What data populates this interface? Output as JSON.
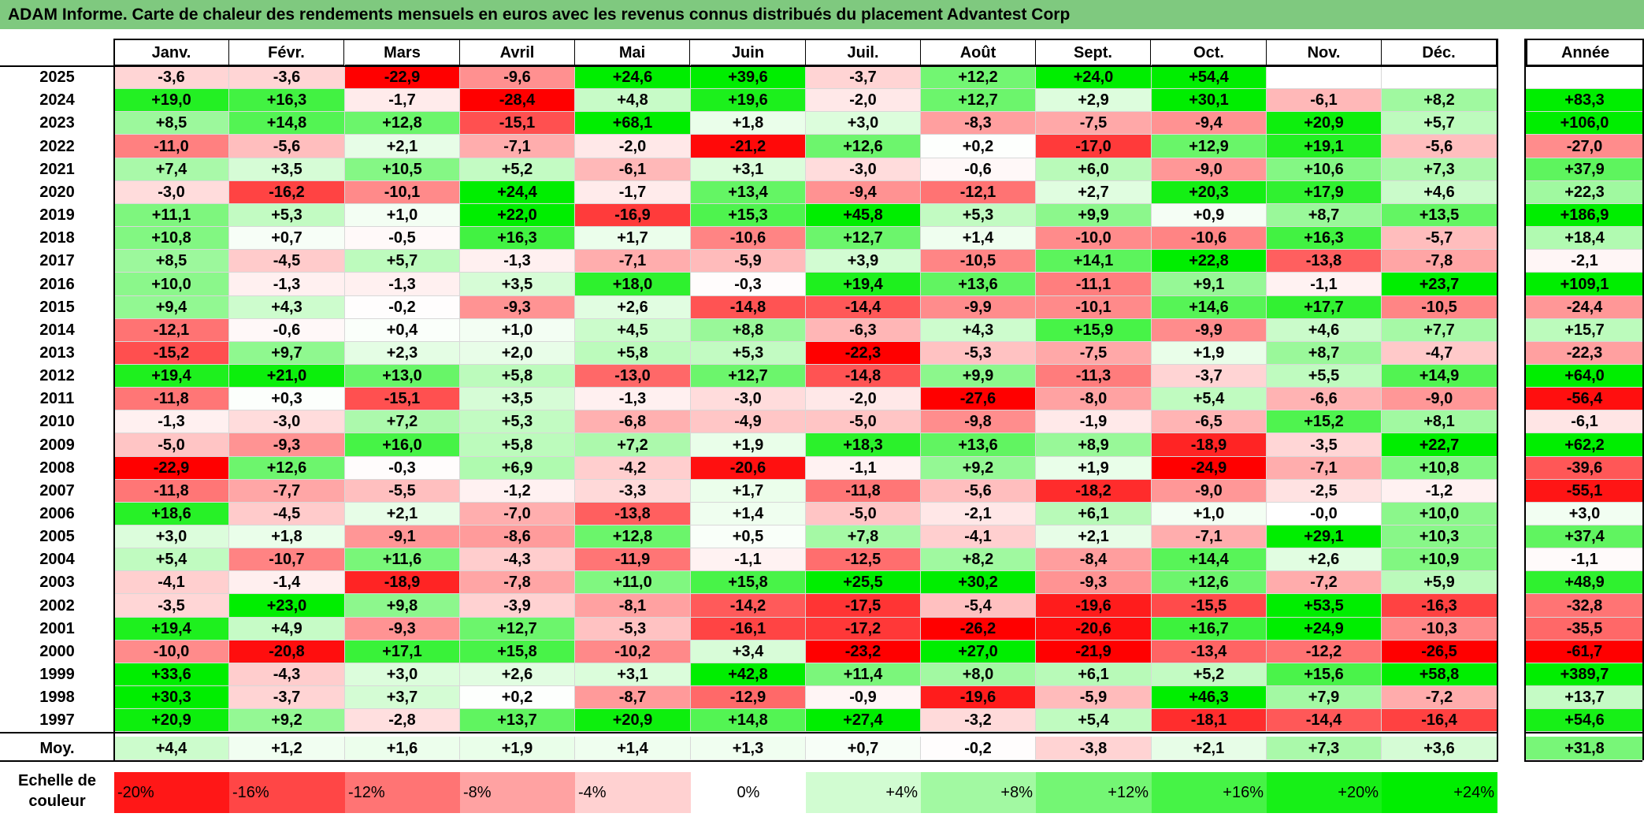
{
  "title": "ADAM Informe. Carte de chaleur des rendements mensuels en euros avec les revenus connus distribués du placement Advantest Corp",
  "chart_data": {
    "type": "heatmap",
    "title": "ADAM Informe. Carte de chaleur des rendements mensuels en euros avec les revenus connus distribués du placement Advantest Corp",
    "months": [
      "Janv.",
      "Févr.",
      "Mars",
      "Avril",
      "Mai",
      "Juin",
      "Juil.",
      "Août",
      "Sept.",
      "Oct.",
      "Nov.",
      "Déc."
    ],
    "year_header": "Année",
    "rows": [
      {
        "year": "2025",
        "values": [
          "-3,6",
          "-3,6",
          "-22,9",
          "-9,6",
          "+24,6",
          "+39,6",
          "-3,7",
          "+12,2",
          "+24,0",
          "+54,4",
          "",
          ""
        ],
        "annual": ""
      },
      {
        "year": "2024",
        "values": [
          "+19,0",
          "+16,3",
          "-1,7",
          "-28,4",
          "+4,8",
          "+19,6",
          "-2,0",
          "+12,7",
          "+2,9",
          "+30,1",
          "-6,1",
          "+8,2"
        ],
        "annual": "+83,3"
      },
      {
        "year": "2023",
        "values": [
          "+8,5",
          "+14,8",
          "+12,8",
          "-15,1",
          "+68,1",
          "+1,8",
          "+3,0",
          "-8,3",
          "-7,5",
          "-9,4",
          "+20,9",
          "+5,7"
        ],
        "annual": "+106,0"
      },
      {
        "year": "2022",
        "values": [
          "-11,0",
          "-5,6",
          "+2,1",
          "-7,1",
          "-2,0",
          "-21,2",
          "+12,6",
          "+0,2",
          "-17,0",
          "+12,9",
          "+19,1",
          "-5,6"
        ],
        "annual": "-27,0"
      },
      {
        "year": "2021",
        "values": [
          "+7,4",
          "+3,5",
          "+10,5",
          "+5,2",
          "-6,1",
          "+3,1",
          "-3,0",
          "-0,6",
          "+6,0",
          "-9,0",
          "+10,6",
          "+7,3"
        ],
        "annual": "+37,9"
      },
      {
        "year": "2020",
        "values": [
          "-3,0",
          "-16,2",
          "-10,1",
          "+24,4",
          "-1,7",
          "+13,4",
          "-9,4",
          "-12,1",
          "+2,7",
          "+20,3",
          "+17,9",
          "+4,6"
        ],
        "annual": "+22,3"
      },
      {
        "year": "2019",
        "values": [
          "+11,1",
          "+5,3",
          "+1,0",
          "+22,0",
          "-16,9",
          "+15,3",
          "+45,8",
          "+5,3",
          "+9,9",
          "+0,9",
          "+8,7",
          "+13,5"
        ],
        "annual": "+186,9"
      },
      {
        "year": "2018",
        "values": [
          "+10,8",
          "+0,7",
          "-0,5",
          "+16,3",
          "+1,7",
          "-10,6",
          "+12,7",
          "+1,4",
          "-10,0",
          "-10,6",
          "+16,3",
          "-5,7"
        ],
        "annual": "+18,4"
      },
      {
        "year": "2017",
        "values": [
          "+8,5",
          "-4,5",
          "+5,7",
          "-1,3",
          "-7,1",
          "-5,9",
          "+3,9",
          "-10,5",
          "+14,1",
          "+22,8",
          "-13,8",
          "-7,8"
        ],
        "annual": "-2,1"
      },
      {
        "year": "2016",
        "values": [
          "+10,0",
          "-1,3",
          "-1,3",
          "+3,5",
          "+18,0",
          "-0,3",
          "+19,4",
          "+13,6",
          "-11,1",
          "+9,1",
          "-1,1",
          "+23,7"
        ],
        "annual": "+109,1"
      },
      {
        "year": "2015",
        "values": [
          "+9,4",
          "+4,3",
          "-0,2",
          "-9,3",
          "+2,6",
          "-14,8",
          "-14,4",
          "-9,9",
          "-10,1",
          "+14,6",
          "+17,7",
          "-10,5"
        ],
        "annual": "-24,4"
      },
      {
        "year": "2014",
        "values": [
          "-12,1",
          "-0,6",
          "+0,4",
          "+1,0",
          "+4,5",
          "+8,8",
          "-6,3",
          "+4,3",
          "+15,9",
          "-9,9",
          "+4,6",
          "+7,7"
        ],
        "annual": "+15,7"
      },
      {
        "year": "2013",
        "values": [
          "-15,2",
          "+9,7",
          "+2,3",
          "+2,0",
          "+5,8",
          "+5,3",
          "-22,3",
          "-5,3",
          "-7,5",
          "+1,9",
          "+8,7",
          "-4,7"
        ],
        "annual": "-22,3"
      },
      {
        "year": "2012",
        "values": [
          "+19,4",
          "+21,0",
          "+13,0",
          "+5,8",
          "-13,0",
          "+12,7",
          "-14,8",
          "+9,9",
          "-11,3",
          "-3,7",
          "+5,5",
          "+14,9"
        ],
        "annual": "+64,0"
      },
      {
        "year": "2011",
        "values": [
          "-11,8",
          "+0,3",
          "-15,1",
          "+3,5",
          "-1,3",
          "-3,0",
          "-2,0",
          "-27,6",
          "-8,0",
          "+5,4",
          "-6,6",
          "-9,0"
        ],
        "annual": "-56,4"
      },
      {
        "year": "2010",
        "values": [
          "-1,3",
          "-3,0",
          "+7,2",
          "+5,3",
          "-6,8",
          "-4,9",
          "-5,0",
          "-9,8",
          "-1,9",
          "-6,5",
          "+15,2",
          "+8,1"
        ],
        "annual": "-6,1"
      },
      {
        "year": "2009",
        "values": [
          "-5,0",
          "-9,3",
          "+16,0",
          "+5,8",
          "+7,2",
          "+1,9",
          "+18,3",
          "+13,6",
          "+8,9",
          "-18,9",
          "-3,5",
          "+22,7"
        ],
        "annual": "+62,2"
      },
      {
        "year": "2008",
        "values": [
          "-22,9",
          "+12,6",
          "-0,3",
          "+6,9",
          "-4,2",
          "-20,6",
          "-1,1",
          "+9,2",
          "+1,9",
          "-24,9",
          "-7,1",
          "+10,8"
        ],
        "annual": "-39,6"
      },
      {
        "year": "2007",
        "values": [
          "-11,8",
          "-7,7",
          "-5,5",
          "-1,2",
          "-3,3",
          "+1,7",
          "-11,8",
          "-5,6",
          "-18,2",
          "-9,0",
          "-2,5",
          "-1,2"
        ],
        "annual": "-55,1"
      },
      {
        "year": "2006",
        "values": [
          "+18,6",
          "-4,5",
          "+2,1",
          "-7,0",
          "-13,8",
          "+1,4",
          "-5,0",
          "-2,1",
          "+6,1",
          "+1,0",
          "-0,0",
          "+10,0"
        ],
        "annual": "+3,0"
      },
      {
        "year": "2005",
        "values": [
          "+3,0",
          "+1,8",
          "-9,1",
          "-8,6",
          "+12,8",
          "+0,5",
          "+7,8",
          "-4,1",
          "+2,1",
          "-7,1",
          "+29,1",
          "+10,3"
        ],
        "annual": "+37,4"
      },
      {
        "year": "2004",
        "values": [
          "+5,4",
          "-10,7",
          "+11,6",
          "-4,3",
          "-11,9",
          "-1,1",
          "-12,5",
          "+8,2",
          "-8,4",
          "+14,4",
          "+2,6",
          "+10,9"
        ],
        "annual": "-1,1"
      },
      {
        "year": "2003",
        "values": [
          "-4,1",
          "-1,4",
          "-18,9",
          "-7,8",
          "+11,0",
          "+15,8",
          "+25,5",
          "+30,2",
          "-9,3",
          "+12,6",
          "-7,2",
          "+5,9"
        ],
        "annual": "+48,9"
      },
      {
        "year": "2002",
        "values": [
          "-3,5",
          "+23,0",
          "+9,8",
          "-3,9",
          "-8,1",
          "-14,2",
          "-17,5",
          "-5,4",
          "-19,6",
          "-15,5",
          "+53,5",
          "-16,3"
        ],
        "annual": "-32,8"
      },
      {
        "year": "2001",
        "values": [
          "+19,4",
          "+4,9",
          "-9,3",
          "+12,7",
          "-5,3",
          "-16,1",
          "-17,2",
          "-26,2",
          "-20,6",
          "+16,7",
          "+24,9",
          "-10,3"
        ],
        "annual": "-35,5"
      },
      {
        "year": "2000",
        "values": [
          "-10,0",
          "-20,8",
          "+17,1",
          "+15,8",
          "-10,2",
          "+3,4",
          "-23,2",
          "+27,0",
          "-21,9",
          "-13,4",
          "-12,2",
          "-26,5"
        ],
        "annual": "-61,7"
      },
      {
        "year": "1999",
        "values": [
          "+33,6",
          "-4,3",
          "+3,0",
          "+2,6",
          "+3,1",
          "+42,8",
          "+11,4",
          "+8,0",
          "+6,1",
          "+5,2",
          "+15,6",
          "+58,8"
        ],
        "annual": "+389,7"
      },
      {
        "year": "1998",
        "values": [
          "+30,3",
          "-3,7",
          "+3,7",
          "+0,2",
          "-8,7",
          "-12,9",
          "-0,9",
          "-19,6",
          "-5,9",
          "+46,3",
          "+7,9",
          "-7,2"
        ],
        "annual": "+13,7"
      },
      {
        "year": "1997",
        "values": [
          "+20,9",
          "+9,2",
          "-2,8",
          "+13,7",
          "+20,9",
          "+14,8",
          "+27,4",
          "-3,2",
          "+5,4",
          "-18,1",
          "-14,4",
          "-16,4"
        ],
        "annual": "+54,6"
      }
    ],
    "average": {
      "label": "Moy.",
      "values": [
        "+4,4",
        "+1,2",
        "+1,6",
        "+1,9",
        "+1,4",
        "+1,3",
        "+0,7",
        "-0,2",
        "-3,8",
        "+2,1",
        "+7,3",
        "+3,6"
      ],
      "annual": "+31,8"
    },
    "scale": {
      "label": "Echelle de couleur",
      "steps": [
        {
          "text": "-20%",
          "value": -20
        },
        {
          "text": "-16%",
          "value": -16
        },
        {
          "text": "-12%",
          "value": -12
        },
        {
          "text": "-8%",
          "value": -8
        },
        {
          "text": "-4%",
          "value": -4
        },
        {
          "text": "0%",
          "value": 0
        },
        {
          "text": "+4%",
          "value": 4
        },
        {
          "text": "+8%",
          "value": 8
        },
        {
          "text": "+12%",
          "value": 12
        },
        {
          "text": "+16%",
          "value": 16
        },
        {
          "text": "+20%",
          "value": 20
        },
        {
          "text": "+24%",
          "value": 24
        }
      ]
    },
    "colors": {
      "negative_max": "#ff0000",
      "neutral": "#ffffff",
      "positive_max": "#00ee00",
      "title_bar": "#7fc97f"
    }
  }
}
